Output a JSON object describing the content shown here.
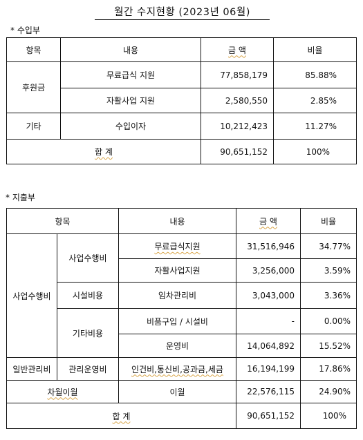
{
  "title": "월간 수지현황 (2023년 06월)",
  "income": {
    "label": "* 수입부",
    "headers": [
      "항목",
      "내용",
      "금 액",
      "비율"
    ],
    "groups": [
      {
        "category": "후원금",
        "items": [
          {
            "content": "무료급식 지원",
            "amount": "77,858,179",
            "ratio": "85.88%"
          },
          {
            "content": "자활사업 지원",
            "amount": "2,580,550",
            "ratio": "2.85%"
          }
        ]
      },
      {
        "category": "기타",
        "items": [
          {
            "content": "수입이자",
            "amount": "10,212,423",
            "ratio": "11.27%"
          }
        ]
      }
    ],
    "total": {
      "label": "합 계",
      "amount": "90,651,152",
      "ratio": "100%"
    }
  },
  "expense": {
    "label": "* 지출부",
    "headers": [
      "항목",
      "내용",
      "금 액",
      "비율"
    ],
    "rows": {
      "cat1": "사업수행비",
      "sub1": "사업수행비",
      "r1": {
        "content": "무료급식지원",
        "amount": "31,516,946",
        "ratio": "34.77%"
      },
      "r2": {
        "content": "자활사업지원",
        "amount": "3,256,000",
        "ratio": "3.59%"
      },
      "sub2": "시설비용",
      "r3": {
        "content": "임차관리비",
        "amount": "3,043,000",
        "ratio": "3.36%"
      },
      "sub3": "기타비용",
      "r4": {
        "content": "비품구입 / 시설비",
        "amount": "-",
        "ratio": "0.00%"
      },
      "r5": {
        "content": "운영비",
        "amount": "14,064,892",
        "ratio": "15.52%"
      },
      "cat2": "일반관리비",
      "sub4": "관리운영비",
      "r6": {
        "content": "인건비,통신비,공과금,세금",
        "amount": "16,194,199",
        "ratio": "17.86%"
      },
      "cat3": "차월이월",
      "r7": {
        "content": "이월",
        "amount": "22,576,115",
        "ratio": "24.90%"
      }
    },
    "total": {
      "label": "합 계",
      "amount": "90,651,152",
      "ratio": "100%"
    }
  }
}
